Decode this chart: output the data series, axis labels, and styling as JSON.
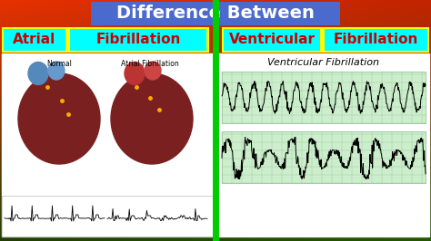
{
  "title": "Difference Between",
  "title_bg": "#4a6acd",
  "title_color": "white",
  "left_label1": "Atrial",
  "left_label2": "Fibrillation",
  "right_label1": "Ventricular",
  "right_label2": "Fibrillation",
  "label_bg_cyan": "#00ffff",
  "label_border_yellow": "#ffff00",
  "label_text_color": "#cc0000",
  "panel_bg": "#ffffff",
  "ecg_top_label": "Ventricular Fibrillation",
  "ecg_grid_color": "#aaddaa",
  "ecg_line_color": "#111111",
  "divider_color": "#00cc00",
  "normal_label": "Normal",
  "af_label": "Atrial Fibrillation"
}
